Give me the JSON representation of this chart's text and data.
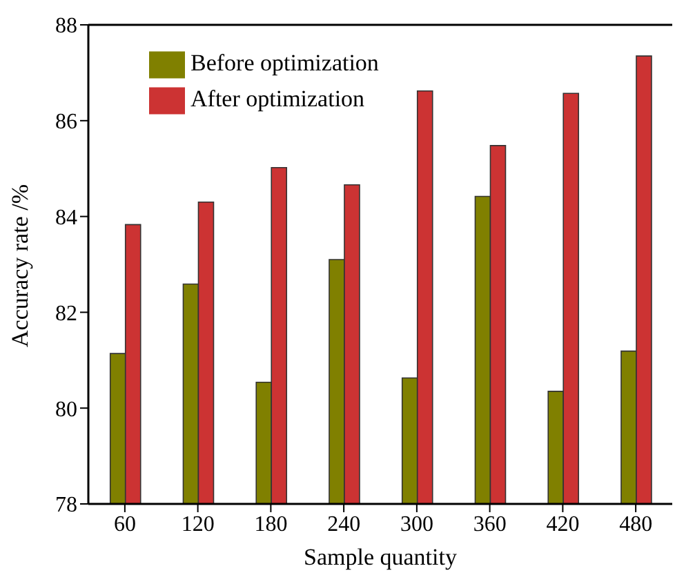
{
  "chart_data": {
    "type": "bar",
    "xlabel": "Sample quantity",
    "ylabel": "Accuracy rate /%",
    "categories": [
      "60",
      "120",
      "180",
      "240",
      "300",
      "360",
      "420",
      "480"
    ],
    "series": [
      {
        "name": "Before optimization",
        "color": "#808000",
        "values": [
          81.14,
          82.59,
          80.54,
          83.1,
          80.63,
          84.42,
          80.35,
          81.19
        ]
      },
      {
        "name": "After optimization",
        "color": "#cc3333",
        "values": [
          83.83,
          84.3,
          85.02,
          84.66,
          86.62,
          85.48,
          86.57,
          87.35
        ]
      }
    ],
    "ylim": [
      78,
      88
    ],
    "yticks": [
      78,
      80,
      82,
      84,
      86,
      88
    ],
    "grid": false,
    "legend": "top left"
  }
}
